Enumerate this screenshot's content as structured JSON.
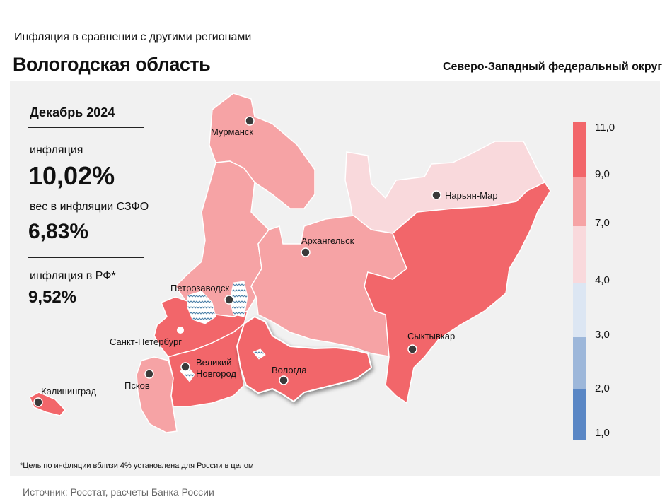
{
  "header": {
    "subtitle": "Инфляция  в сравнении  с другими  регионами",
    "title": "Вологодская область",
    "district": "Северо-Западный федеральный округ"
  },
  "stats": {
    "period": "Декабрь 2024",
    "inflation_label": "инфляция",
    "inflation_value": "10,02%",
    "weight_label": "вес в инфляции  СЗФО",
    "weight_value": "6,83%",
    "rf_label": "инфляция  в РФ*",
    "rf_value": "9,52%"
  },
  "cities": {
    "murmansk": "Мурманск",
    "naryan_mar": "Нарьян-Мар",
    "arkhangelsk": "Архангельск",
    "petrozavodsk": "Петрозаводск",
    "spb": "Санкт-Петербург",
    "syktyvkar": "Сыктывкар",
    "vnovgorod_1": "Великий",
    "vnovgorod_2": "Новгород",
    "vologda": "Вологда",
    "pskov": "Псков",
    "kaliningrad": "Калининград"
  },
  "legend": {
    "labels": [
      "11,0",
      "9,0",
      "7,0",
      "4,0",
      "3,0",
      "2,0",
      "1,0"
    ],
    "bins": [
      {
        "range": [
          9.0,
          11.0
        ],
        "color": "#f2666a"
      },
      {
        "range": [
          7.0,
          9.0
        ],
        "color": "#f6a3a5"
      },
      {
        "range": [
          4.0,
          7.0
        ],
        "color": "#f9d9dc"
      },
      {
        "range": [
          3.0,
          4.0
        ],
        "color": "#dce6f3"
      },
      {
        "range": [
          2.0,
          3.0
        ],
        "color": "#9db7da"
      },
      {
        "range": [
          1.0,
          2.0
        ],
        "color": "#5a87c5"
      }
    ]
  },
  "regions_colors": {
    "murmansk_region": "#f6a3a5",
    "karelia": "#f6a3a5",
    "leningrad_region": "#f2666a",
    "nenets": "#f9d9dc",
    "arkhangelsk_region": "#f6a3a5",
    "komi": "#f2666a",
    "vologda_region": "#f2666a",
    "novgorod_region": "#f2666a",
    "pskov_region": "#f6a3a5",
    "kaliningrad_region": "#f2666a"
  },
  "footnote": "*Цель по инфляции вблизи 4% установлена для России в целом",
  "source": "Источник:  Росстат,  расчеты Банка  России"
}
